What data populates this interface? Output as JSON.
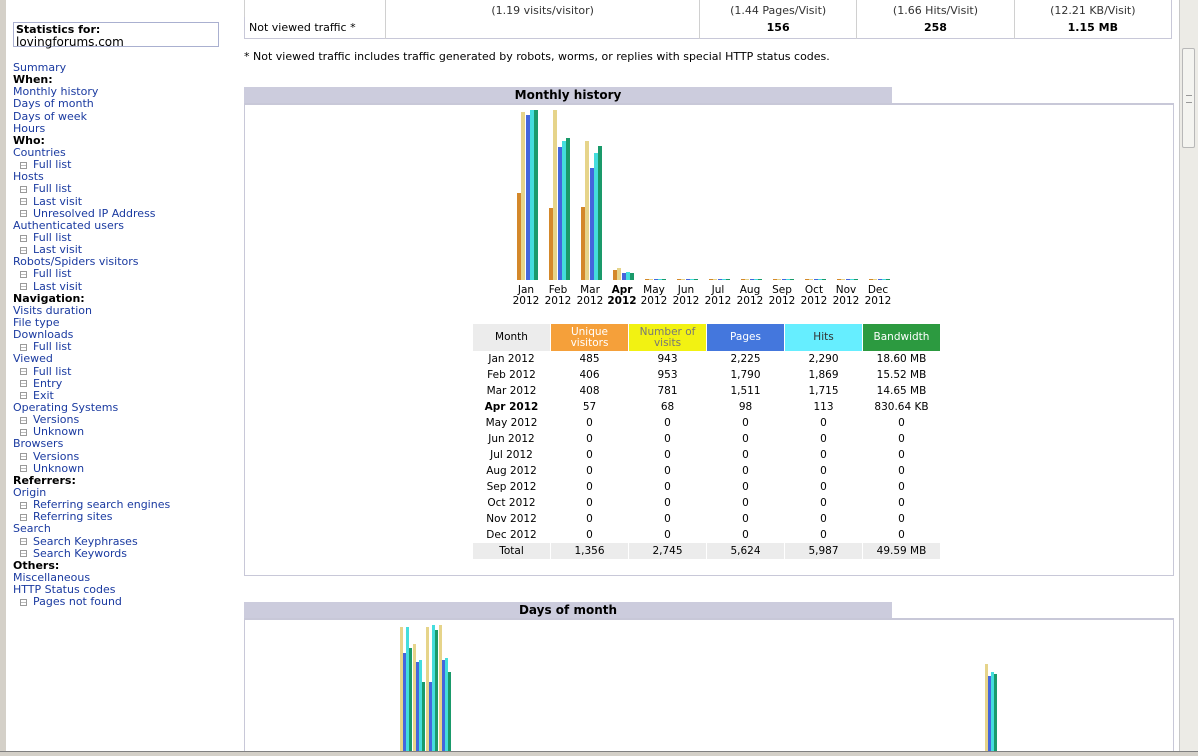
{
  "sidebar": {
    "stats_label": "Statistics for:",
    "site": "lovingforums.com",
    "menu": [
      {
        "t": "l",
        "text": "Summary"
      },
      {
        "t": "h",
        "text": "When:"
      },
      {
        "t": "l",
        "text": "Monthly history"
      },
      {
        "t": "l",
        "text": "Days of month"
      },
      {
        "t": "l",
        "text": "Days of week"
      },
      {
        "t": "l",
        "text": "Hours"
      },
      {
        "t": "h",
        "text": "Who:"
      },
      {
        "t": "l",
        "text": "Countries"
      },
      {
        "t": "s",
        "text": "Full list"
      },
      {
        "t": "l",
        "text": "Hosts"
      },
      {
        "t": "s",
        "text": "Full list"
      },
      {
        "t": "s",
        "text": "Last visit"
      },
      {
        "t": "s",
        "text": "Unresolved IP Address"
      },
      {
        "t": "l",
        "text": "Authenticated users"
      },
      {
        "t": "s",
        "text": "Full list"
      },
      {
        "t": "s",
        "text": "Last visit"
      },
      {
        "t": "l",
        "text": "Robots/Spiders visitors"
      },
      {
        "t": "s",
        "text": "Full list"
      },
      {
        "t": "s",
        "text": "Last visit"
      },
      {
        "t": "h",
        "text": "Navigation:"
      },
      {
        "t": "l",
        "text": "Visits duration"
      },
      {
        "t": "l",
        "text": "File type"
      },
      {
        "t": "l",
        "text": "Downloads"
      },
      {
        "t": "s",
        "text": "Full list"
      },
      {
        "t": "l",
        "text": "Viewed"
      },
      {
        "t": "s",
        "text": "Full list"
      },
      {
        "t": "s",
        "text": "Entry"
      },
      {
        "t": "s",
        "text": "Exit"
      },
      {
        "t": "l",
        "text": "Operating Systems"
      },
      {
        "t": "s",
        "text": "Versions"
      },
      {
        "t": "s",
        "text": "Unknown"
      },
      {
        "t": "l",
        "text": "Browsers"
      },
      {
        "t": "s",
        "text": "Versions"
      },
      {
        "t": "s",
        "text": "Unknown"
      },
      {
        "t": "h",
        "text": "Referrers:"
      },
      {
        "t": "l",
        "text": "Origin"
      },
      {
        "t": "s",
        "text": "Referring search engines"
      },
      {
        "t": "s",
        "text": "Referring sites"
      },
      {
        "t": "l",
        "text": "Search"
      },
      {
        "t": "s",
        "text": "Search Keyphrases"
      },
      {
        "t": "s",
        "text": "Search Keywords"
      },
      {
        "t": "h",
        "text": "Others:"
      },
      {
        "t": "l",
        "text": "Miscellaneous"
      },
      {
        "t": "l",
        "text": "HTTP Status codes"
      },
      {
        "t": "s",
        "text": "Pages not found"
      }
    ]
  },
  "summary": {
    "top_row": [
      "(1.19 visits/visitor)",
      "(1.44 Pages/Visit)",
      "(1.66 Hits/Visit)",
      "(12.21 KB/Visit)"
    ],
    "not_viewed_label": "Not viewed traffic *",
    "not_viewed": {
      "pages": "156",
      "hits": "258",
      "bandwidth": "1.15 MB"
    },
    "note": "* Not viewed traffic includes traffic generated by robots, worms, or replies with special HTTP status codes."
  },
  "monthly": {
    "title": "Monthly history",
    "headers": {
      "month": "Month",
      "unique": "Unique visitors",
      "visits": "Number of visits",
      "pages": "Pages",
      "hits": "Hits",
      "bandwidth": "Bandwidth"
    },
    "current": "Apr 2012",
    "rows": [
      {
        "month": "Jan 2012",
        "unique": "485",
        "visits": "943",
        "pages": "2,225",
        "hits": "2,290",
        "bw": "18.60 MB"
      },
      {
        "month": "Feb 2012",
        "unique": "406",
        "visits": "953",
        "pages": "1,790",
        "hits": "1,869",
        "bw": "15.52 MB"
      },
      {
        "month": "Mar 2012",
        "unique": "408",
        "visits": "781",
        "pages": "1,511",
        "hits": "1,715",
        "bw": "14.65 MB"
      },
      {
        "month": "Apr 2012",
        "unique": "57",
        "visits": "68",
        "pages": "98",
        "hits": "113",
        "bw": "830.64 KB"
      },
      {
        "month": "May 2012",
        "unique": "0",
        "visits": "0",
        "pages": "0",
        "hits": "0",
        "bw": "0"
      },
      {
        "month": "Jun 2012",
        "unique": "0",
        "visits": "0",
        "pages": "0",
        "hits": "0",
        "bw": "0"
      },
      {
        "month": "Jul 2012",
        "unique": "0",
        "visits": "0",
        "pages": "0",
        "hits": "0",
        "bw": "0"
      },
      {
        "month": "Aug 2012",
        "unique": "0",
        "visits": "0",
        "pages": "0",
        "hits": "0",
        "bw": "0"
      },
      {
        "month": "Sep 2012",
        "unique": "0",
        "visits": "0",
        "pages": "0",
        "hits": "0",
        "bw": "0"
      },
      {
        "month": "Oct 2012",
        "unique": "0",
        "visits": "0",
        "pages": "0",
        "hits": "0",
        "bw": "0"
      },
      {
        "month": "Nov 2012",
        "unique": "0",
        "visits": "0",
        "pages": "0",
        "hits": "0",
        "bw": "0"
      },
      {
        "month": "Dec 2012",
        "unique": "0",
        "visits": "0",
        "pages": "0",
        "hits": "0",
        "bw": "0"
      }
    ],
    "total": {
      "month": "Total",
      "unique": "1,356",
      "visits": "2,745",
      "pages": "5,624",
      "hits": "5,987",
      "bw": "49.59 MB"
    }
  },
  "chart_data": {
    "type": "bar",
    "categories": [
      "Jan",
      "Feb",
      "Mar",
      "Apr",
      "May",
      "Jun",
      "Jul",
      "Aug",
      "Sep",
      "Oct",
      "Nov",
      "Dec"
    ],
    "category_years": [
      "2012",
      "2012",
      "2012",
      "2012",
      "2012",
      "2012",
      "2012",
      "2012",
      "2012",
      "2012",
      "2012",
      "2012"
    ],
    "series": [
      {
        "values": [
          485,
          406,
          408,
          57,
          0,
          0,
          0,
          0,
          0,
          0,
          0,
          0
        ],
        "color": "#d4882a"
      },
      {
        "values": [
          943,
          953,
          781,
          68,
          0,
          0,
          0,
          0,
          0,
          0,
          0,
          0
        ],
        "color": "#e6d48a"
      },
      {
        "values": [
          2225,
          1790,
          1511,
          98,
          0,
          0,
          0,
          0,
          0,
          0,
          0,
          0
        ],
        "color": "#4466dd"
      },
      {
        "values": [
          2290,
          1869,
          1715,
          113,
          0,
          0,
          0,
          0,
          0,
          0,
          0,
          0
        ],
        "color": "#44dddd"
      },
      {
        "values": [
          18.6,
          15.52,
          14.65,
          0.81,
          0,
          0,
          0,
          0,
          0,
          0,
          0,
          0
        ],
        "color": "#1a9a6a"
      }
    ]
  },
  "days": {
    "title": "Days of month"
  },
  "colors": {
    "link": "#1a3aa0",
    "section_header": "#ccccdd",
    "unique": "#f5a03a",
    "visits": "#f2f212",
    "pages": "#4477dd",
    "hits": "#66eeff",
    "bandwidth": "#2c9a40"
  }
}
